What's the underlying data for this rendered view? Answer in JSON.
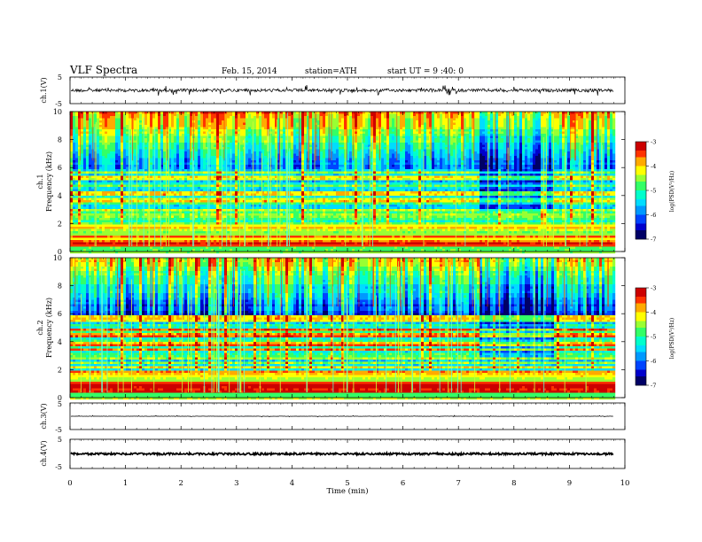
{
  "header": {
    "title": "VLF Spectra",
    "date": "Feb. 15, 2014",
    "station": "station=ATH",
    "start": "start UT =  9 :40: 0"
  },
  "chart_data": {
    "type": "heatmap",
    "x_axis": {
      "label": "Time (min)",
      "range": [
        0,
        10
      ],
      "ticks": [
        "0",
        "1",
        "2",
        "3",
        "4",
        "5",
        "6",
        "7",
        "8",
        "9",
        "10"
      ],
      "data_end_min": 9.8
    },
    "panels": [
      {
        "name": "ch.1 waveform",
        "type": "line",
        "ylabel": "ch.1(V)",
        "ylim": [
          -5,
          5
        ],
        "yticks": [
          "5",
          "-5"
        ],
        "baseline_v": 0.0,
        "noise_v": 0.6,
        "spike_v": 2.0
      },
      {
        "name": "ch.1 spectrogram",
        "type": "heatmap",
        "ylabel_lines": [
          "ch.1",
          "Frequency (kHz)"
        ],
        "ylim_khz": [
          0,
          10
        ],
        "yticks": [
          "0",
          "2",
          "4",
          "6",
          "8",
          "10"
        ],
        "colorbar": {
          "label": "log(PSD(V²/Hz)",
          "range": [
            -7,
            -3
          ],
          "ticks": [
            "-3",
            "-4",
            "-5",
            "-6",
            "-7"
          ]
        },
        "features": {
          "quiet_window_min": [
            7.35,
            8.7
          ],
          "red_band_khz": [
            0.4,
            0.8
          ],
          "low_band_khz": [
            0.0,
            0.4
          ]
        }
      },
      {
        "name": "ch.2 spectrogram",
        "type": "heatmap",
        "ylabel_lines": [
          "ch.2",
          "Frequency (kHz)"
        ],
        "ylim_khz": [
          0,
          10
        ],
        "yticks": [
          "0",
          "2",
          "4",
          "6",
          "8",
          "10"
        ],
        "colorbar": {
          "label": "log(PSD(V²/Hz)",
          "range": [
            -7,
            -3
          ],
          "ticks": [
            "-3",
            "-4",
            "-5",
            "-6",
            "-7"
          ]
        },
        "features": {
          "quiet_window_min": [
            7.35,
            8.7
          ],
          "red_band_khz": [
            0.5,
            1.3
          ],
          "low_band_khz": [
            0.0,
            0.4
          ]
        }
      },
      {
        "name": "ch.3 waveform",
        "type": "line",
        "ylabel": "ch.3(V)",
        "ylim": [
          -5,
          5
        ],
        "yticks": [
          "5",
          "-5"
        ],
        "baseline_v": 0.0,
        "noise_v": 0.05,
        "spike_v": 0.3
      },
      {
        "name": "ch.4 waveform",
        "type": "line",
        "ylabel": "ch.4(V)",
        "ylim": [
          -5,
          5
        ],
        "yticks": [
          "5",
          "-5"
        ],
        "baseline_v": 0.0,
        "noise_v": 0.35,
        "spike_v": 0.4
      }
    ],
    "colormap": [
      "#000066",
      "#0000cc",
      "#0044ff",
      "#0099ff",
      "#00ddff",
      "#00ffcc",
      "#33ff66",
      "#99ff33",
      "#ffff00",
      "#ffaa00",
      "#ff3300",
      "#cc0000",
      "#ffffff"
    ]
  }
}
